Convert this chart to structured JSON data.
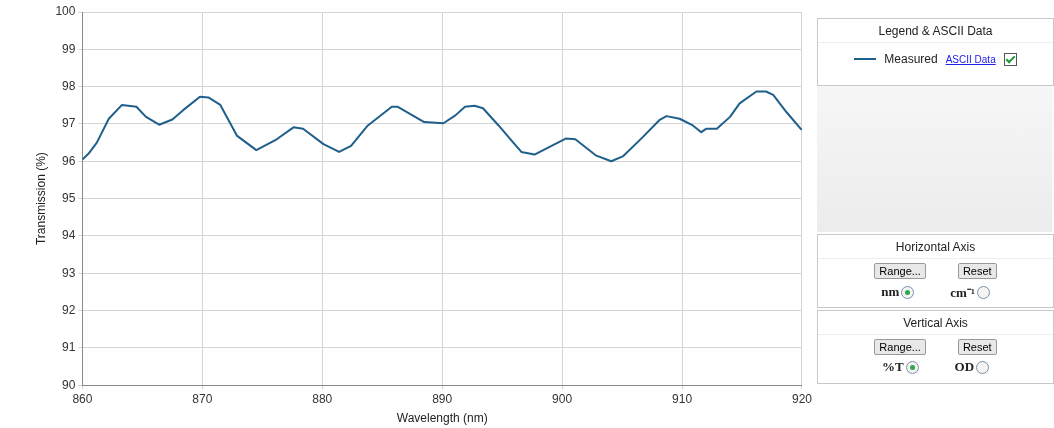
{
  "chart_data": {
    "type": "line",
    "xlabel": "Wavelength (nm)",
    "ylabel": "Transmission (%)",
    "legend_title": "Legend & ASCII Data",
    "xlim": [
      860,
      920
    ],
    "xticks": [
      860,
      870,
      880,
      890,
      900,
      910,
      920
    ],
    "ylim": [
      90,
      100
    ],
    "yticks": [
      90,
      91,
      92,
      93,
      94,
      95,
      96,
      97,
      98,
      99,
      100
    ],
    "grid": true,
    "legend": "right",
    "marker": "none",
    "line_style": "solid",
    "series": [
      {
        "name": "Measured",
        "color": "#1f5f8b",
        "x": [
          860,
          860.5,
          861.2,
          862.2,
          863.3,
          864.5,
          865.3,
          866.4,
          867.5,
          868.4,
          869.8,
          870.5,
          871.5,
          872.9,
          874.5,
          876.2,
          877.6,
          878.4,
          880.1,
          881.4,
          882.4,
          883.8,
          885.8,
          886.3,
          888.5,
          890.1,
          891.1,
          891.9,
          892.7,
          893.4,
          894.7,
          896.6,
          897.7,
          899.4,
          900.3,
          901.1,
          902.8,
          904.1,
          905.1,
          906.7,
          908.1,
          908.7,
          909.8,
          910.9,
          911.6,
          912,
          912.9,
          914,
          914.8,
          916.2,
          917,
          917.6,
          918.7,
          919.9,
          920
        ],
        "values": [
          96.05,
          96.2,
          96.5,
          97.14,
          97.51,
          97.46,
          97.19,
          96.98,
          97.12,
          97.37,
          97.73,
          97.71,
          97.51,
          96.68,
          96.3,
          96.59,
          96.91,
          96.87,
          96.46,
          96.25,
          96.41,
          96.96,
          97.46,
          97.46,
          97.05,
          97.02,
          97.23,
          97.46,
          97.49,
          97.42,
          96.96,
          96.25,
          96.18,
          96.46,
          96.61,
          96.59,
          96.16,
          96.0,
          96.14,
          96.64,
          97.1,
          97.21,
          97.14,
          96.96,
          96.78,
          96.87,
          96.87,
          97.19,
          97.55,
          97.87,
          97.87,
          97.78,
          97.32,
          96.87,
          96.85
        ]
      }
    ],
    "annotations": [
      "ASCII Data",
      "Horizontal Axis",
      "Range...",
      "Reset",
      "nm",
      "cm⁻¹",
      "Vertical Axis",
      "Range...",
      "Reset",
      "%T",
      "OD"
    ]
  }
}
